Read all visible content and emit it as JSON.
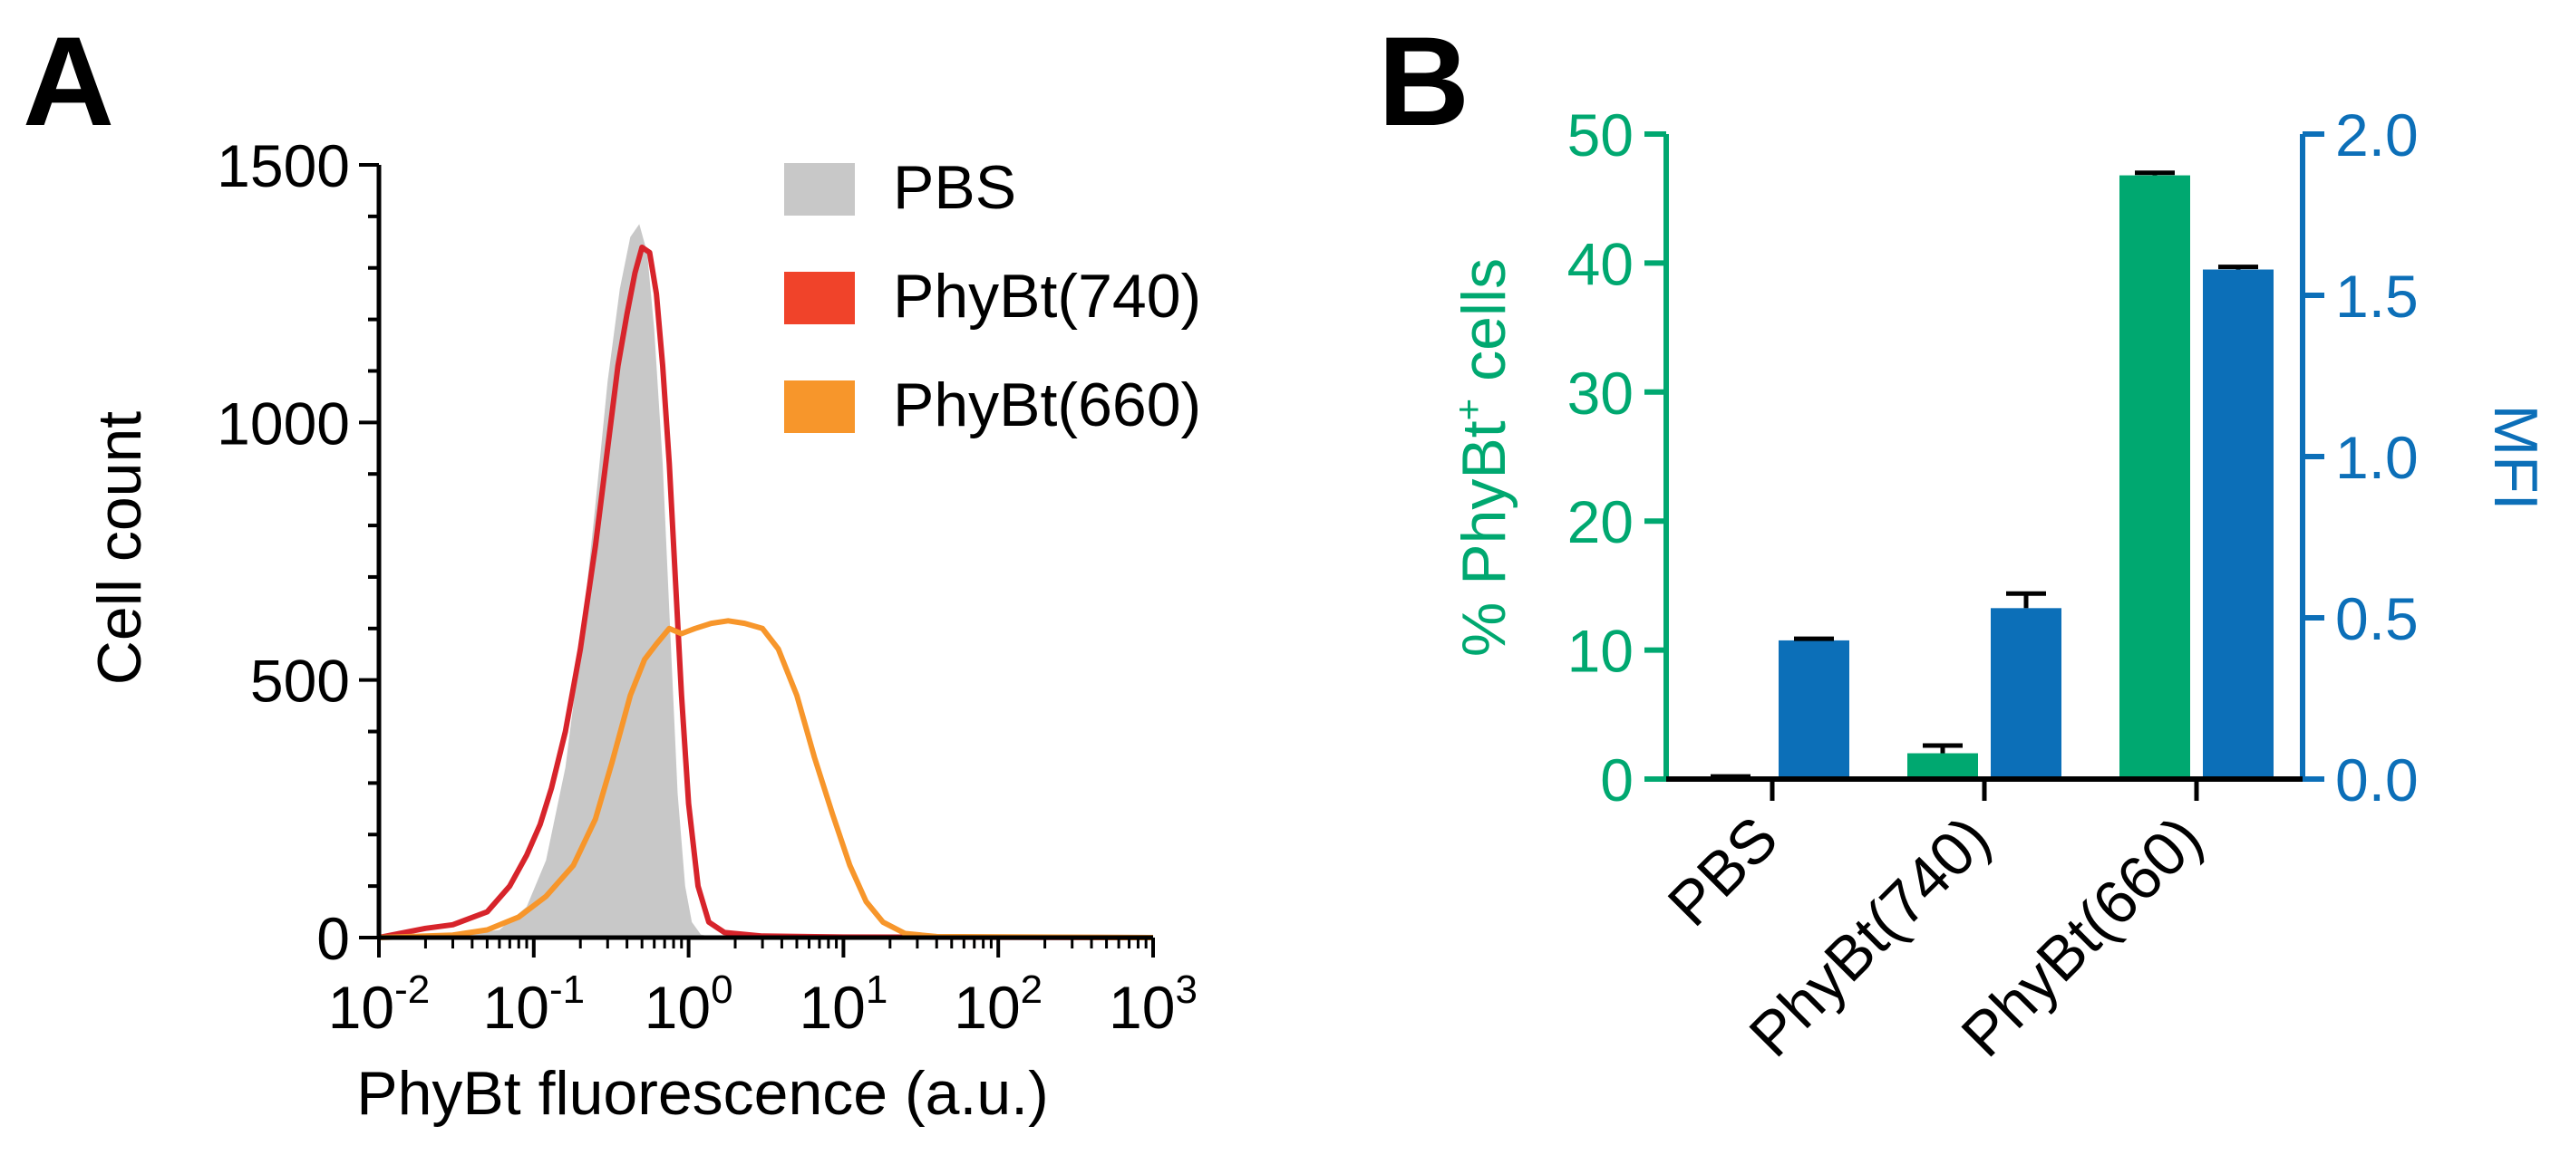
{
  "panel_labels": {
    "a": "A",
    "b": "B"
  },
  "colors": {
    "pbs": "#c8c8c8",
    "phybt740": "#d7242b",
    "phybt740_legend": "#f0432a",
    "phybt660": "#f7962b",
    "green": "#00a870",
    "blue": "#0c6fb8",
    "axis": "#000000"
  },
  "chart_data": [
    {
      "type": "area",
      "xlabel": "PhyBt fluorescence (a.u.)",
      "ylabel": "Cell count",
      "x_scale": "log",
      "xlim": [
        0.01,
        1000
      ],
      "ylim": [
        0,
        1500
      ],
      "x_ticks": [
        {
          "base": "10",
          "exp": "-2",
          "value": 0.01
        },
        {
          "base": "10",
          "exp": "-1",
          "value": 0.1
        },
        {
          "base": "10",
          "exp": "0",
          "value": 1
        },
        {
          "base": "10",
          "exp": "1",
          "value": 10
        },
        {
          "base": "10",
          "exp": "2",
          "value": 100
        },
        {
          "base": "10",
          "exp": "3",
          "value": 1000
        }
      ],
      "y_ticks": [
        "0",
        "500",
        "1000",
        "1500"
      ],
      "y_tick_values": [
        0,
        500,
        1000,
        1500
      ],
      "legend_position": "top-right",
      "series": [
        {
          "name": "PBS",
          "style": "filled",
          "points": [
            [
              0.01,
              0
            ],
            [
              0.03,
              3
            ],
            [
              0.06,
              15
            ],
            [
              0.09,
              60
            ],
            [
              0.12,
              150
            ],
            [
              0.16,
              330
            ],
            [
              0.2,
              560
            ],
            [
              0.25,
              840
            ],
            [
              0.3,
              1080
            ],
            [
              0.36,
              1260
            ],
            [
              0.42,
              1360
            ],
            [
              0.48,
              1385
            ],
            [
              0.54,
              1330
            ],
            [
              0.6,
              1180
            ],
            [
              0.68,
              920
            ],
            [
              0.76,
              600
            ],
            [
              0.85,
              280
            ],
            [
              0.95,
              100
            ],
            [
              1.05,
              30
            ],
            [
              1.2,
              6
            ],
            [
              1.5,
              0
            ],
            [
              1000,
              0
            ]
          ]
        },
        {
          "name": "PhyBt(740)",
          "style": "line",
          "points": [
            [
              0.01,
              0
            ],
            [
              0.02,
              18
            ],
            [
              0.03,
              25
            ],
            [
              0.05,
              50
            ],
            [
              0.07,
              100
            ],
            [
              0.09,
              160
            ],
            [
              0.11,
              220
            ],
            [
              0.13,
              290
            ],
            [
              0.16,
              400
            ],
            [
              0.2,
              560
            ],
            [
              0.25,
              760
            ],
            [
              0.3,
              950
            ],
            [
              0.35,
              1110
            ],
            [
              0.4,
              1210
            ],
            [
              0.45,
              1290
            ],
            [
              0.5,
              1340
            ],
            [
              0.56,
              1330
            ],
            [
              0.62,
              1250
            ],
            [
              0.68,
              1110
            ],
            [
              0.75,
              920
            ],
            [
              0.82,
              700
            ],
            [
              0.9,
              470
            ],
            [
              1.0,
              260
            ],
            [
              1.15,
              100
            ],
            [
              1.35,
              30
            ],
            [
              1.7,
              10
            ],
            [
              3,
              3
            ],
            [
              10,
              1
            ],
            [
              1000,
              0
            ]
          ]
        },
        {
          "name": "PhyBt(660)",
          "style": "line",
          "points": [
            [
              0.01,
              0
            ],
            [
              0.03,
              5
            ],
            [
              0.05,
              15
            ],
            [
              0.08,
              40
            ],
            [
              0.12,
              80
            ],
            [
              0.18,
              140
            ],
            [
              0.25,
              230
            ],
            [
              0.32,
              340
            ],
            [
              0.42,
              470
            ],
            [
              0.52,
              540
            ],
            [
              0.62,
              570
            ],
            [
              0.75,
              600
            ],
            [
              0.9,
              590
            ],
            [
              1.1,
              600
            ],
            [
              1.4,
              610
            ],
            [
              1.8,
              615
            ],
            [
              2.3,
              610
            ],
            [
              3.0,
              600
            ],
            [
              3.8,
              560
            ],
            [
              5.0,
              470
            ],
            [
              6.5,
              350
            ],
            [
              8.5,
              240
            ],
            [
              11,
              140
            ],
            [
              14,
              70
            ],
            [
              18,
              30
            ],
            [
              25,
              8
            ],
            [
              40,
              2
            ],
            [
              1000,
              0
            ]
          ]
        }
      ]
    },
    {
      "type": "bar",
      "categories": [
        "PBS",
        "PhyBt(740)",
        "PhyBt(660)"
      ],
      "ylabel_left": "% PhyBt",
      "ylabel_left_sup": "+",
      "ylabel_left_rest": " cells",
      "ylabel_right": "MFI",
      "ylim_left": [
        0,
        50
      ],
      "ylim_right": [
        0,
        2.0
      ],
      "y_ticks_left": [
        "0",
        "10",
        "20",
        "30",
        "40",
        "50"
      ],
      "y_ticks_left_values": [
        0,
        10,
        20,
        30,
        40,
        50
      ],
      "y_ticks_right": [
        "0.0",
        "0.5",
        "1.0",
        "1.5",
        "2.0"
      ],
      "y_ticks_right_values": [
        0,
        0.5,
        1.0,
        1.5,
        2.0
      ],
      "series": [
        {
          "axis": "left",
          "values": [
            0.1,
            2.0,
            46.8
          ],
          "errors": [
            0.1,
            0.6,
            0.2
          ]
        },
        {
          "axis": "right",
          "values": [
            0.43,
            0.53,
            1.58
          ],
          "errors": [
            0.005,
            0.045,
            0.008
          ]
        }
      ]
    }
  ]
}
